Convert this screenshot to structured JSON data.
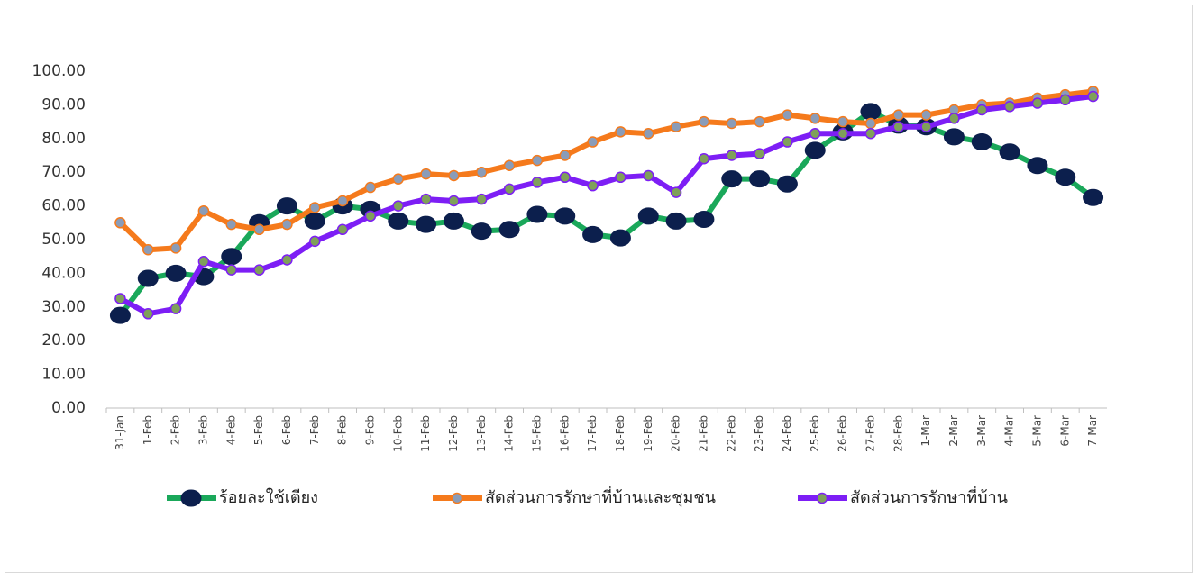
{
  "chart_data": {
    "type": "line",
    "categories": [
      "31-Jan",
      "1-Feb",
      "2-Feb",
      "3-Feb",
      "4-Feb",
      "5-Feb",
      "6-Feb",
      "7-Feb",
      "8-Feb",
      "9-Feb",
      "10-Feb",
      "11-Feb",
      "12-Feb",
      "13-Feb",
      "14-Feb",
      "15-Feb",
      "16-Feb",
      "17-Feb",
      "18-Feb",
      "19-Feb",
      "20-Feb",
      "21-Feb",
      "22-Feb",
      "23-Feb",
      "24-Feb",
      "25-Feb",
      "26-Feb",
      "27-Feb",
      "28-Feb",
      "1-Mar",
      "2-Mar",
      "3-Mar",
      "4-Mar",
      "5-Mar",
      "6-Mar",
      "7-Mar"
    ],
    "series": [
      {
        "name": "ร้อยละใช้เตียง",
        "color": "#1aa85a",
        "marker_color": "#0c1f4d",
        "values": [
          27.5,
          38.5,
          40,
          39,
          45,
          55,
          60,
          55.5,
          60,
          59,
          55.5,
          54.5,
          55.5,
          52.5,
          53,
          57.5,
          57,
          51.5,
          50.5,
          57,
          55.5,
          56,
          68,
          68,
          66.5,
          76.5,
          82,
          88,
          84,
          83.5,
          80.5,
          79,
          76,
          72,
          68.5,
          62.5
        ]
      },
      {
        "name": "สัดส่วนการรักษาที่บ้านและชุมชน",
        "color": "#f57a1c",
        "marker_color": "#8a9cb8",
        "values": [
          55,
          47,
          47.5,
          58.5,
          54.5,
          53,
          54.5,
          59.5,
          61.5,
          65.5,
          68,
          69.5,
          69,
          70,
          72,
          73.5,
          75,
          79,
          82,
          81.5,
          83.5,
          85,
          84.5,
          85,
          87,
          86,
          85,
          84.5,
          87,
          87,
          88.5,
          90,
          90.5,
          92,
          93,
          94
        ]
      },
      {
        "name": "สัดส่วนการรักษาที่บ้าน",
        "color": "#7d1ef5",
        "marker_color": "#7fa05a",
        "values": [
          32.5,
          28,
          29.5,
          43.5,
          41,
          41,
          44,
          49.5,
          53,
          57,
          60,
          62,
          61.5,
          62,
          65,
          67,
          68.5,
          66,
          68.5,
          69,
          64,
          74,
          75,
          75.5,
          79,
          81.5,
          81.5,
          81.5,
          83.5,
          83.5,
          86,
          88.5,
          89.5,
          90.5,
          91.5,
          92.5
        ]
      }
    ],
    "ylim": [
      0,
      100
    ],
    "yticks": [
      {
        "value": 0,
        "label": "0.00"
      },
      {
        "value": 10,
        "label": "10.00"
      },
      {
        "value": 20,
        "label": "20.00"
      },
      {
        "value": 30,
        "label": "30.00"
      },
      {
        "value": 40,
        "label": "40.00"
      },
      {
        "value": 50,
        "label": "50.00"
      },
      {
        "value": 60,
        "label": "60.00"
      },
      {
        "value": 70,
        "label": "70.00"
      },
      {
        "value": 80,
        "label": "80.00"
      },
      {
        "value": 90,
        "label": "90.00"
      },
      {
        "value": 100,
        "label": "100.00"
      }
    ],
    "grid": false,
    "legend": "bottom"
  }
}
